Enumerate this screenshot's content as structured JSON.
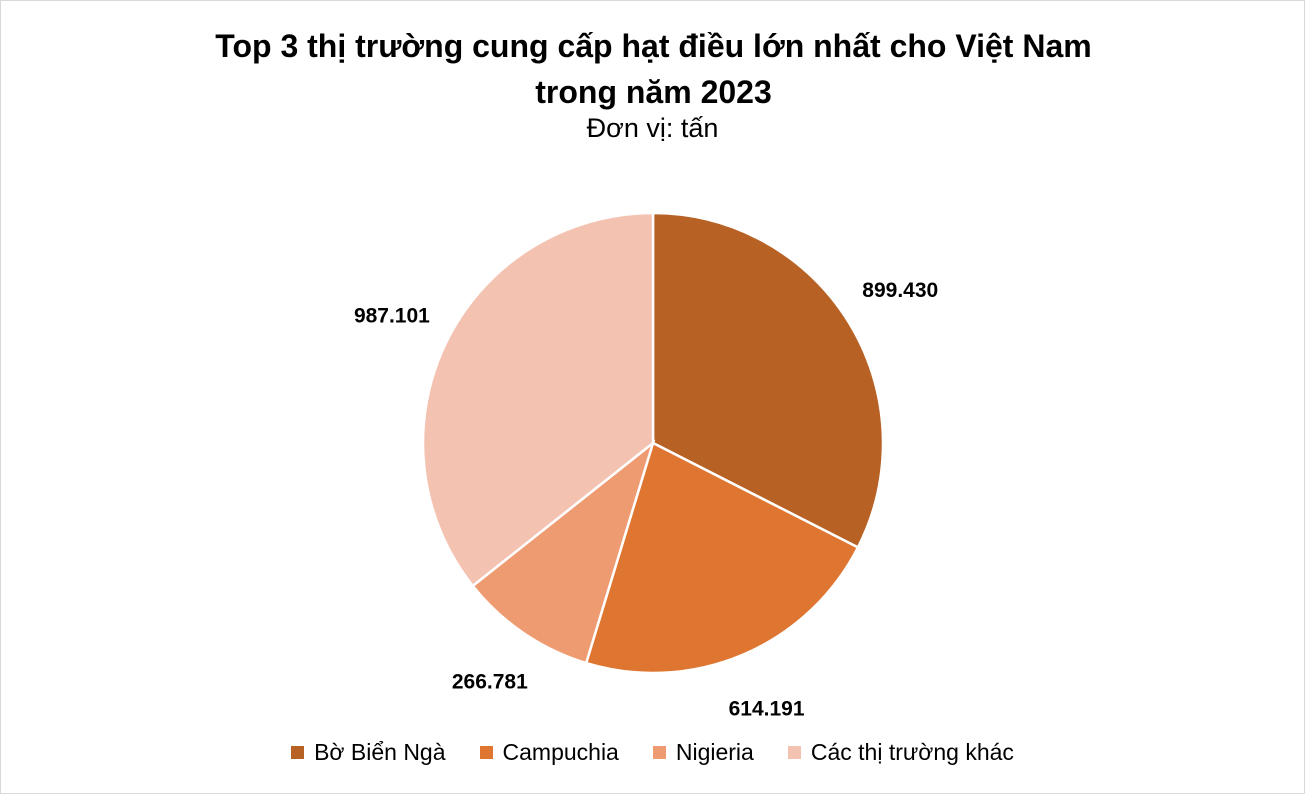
{
  "chart_data": {
    "type": "pie",
    "title": "Top 3 thị trường cung cấp hạt điều lớn nhất cho Việt Nam trong năm 2023",
    "subtitle": "Đơn vị: tấn",
    "categories": [
      "Bờ Biển Ngà",
      "Campuchia",
      "Nigieria",
      "Các thị trường khác"
    ],
    "values": [
      899430,
      614191,
      266781,
      987101
    ],
    "value_labels": [
      "899.430",
      "614.191",
      "266.781",
      "987.101"
    ],
    "colors": [
      "#b86125",
      "#de7530",
      "#ef9b72",
      "#f4c2b1"
    ],
    "legend": "bottom"
  }
}
